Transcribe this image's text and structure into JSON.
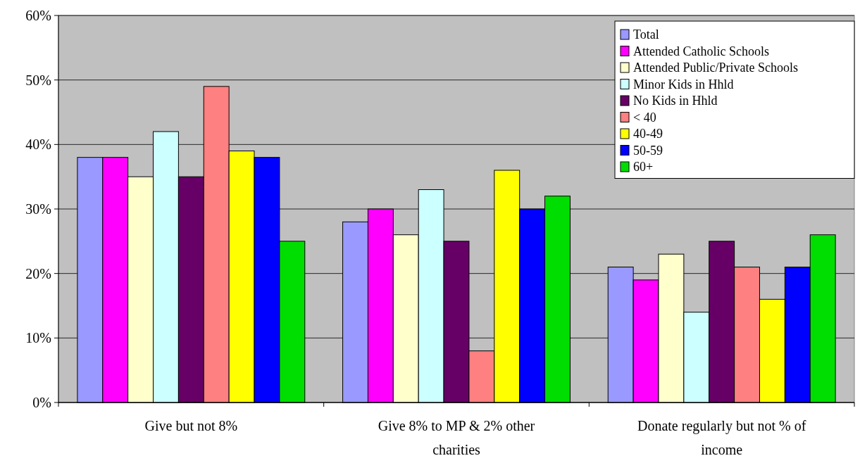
{
  "chart_data": {
    "type": "bar",
    "categories": [
      "Give but not 8%",
      "Give 8% to MP & 2% other charities",
      "Donate regularly but not % of income"
    ],
    "series": [
      {
        "name": "Total",
        "color": "#9999ff",
        "values": [
          38,
          28,
          21
        ]
      },
      {
        "name": "Attended Catholic Schools",
        "color": "#ff00ff",
        "values": [
          38,
          30,
          19
        ]
      },
      {
        "name": "Attended Public/Private Schools",
        "color": "#ffffcc",
        "values": [
          35,
          26,
          23
        ]
      },
      {
        "name": "Minor Kids in Hhld",
        "color": "#ccffff",
        "values": [
          42,
          33,
          14
        ]
      },
      {
        "name": "No Kids in Hhld",
        "color": "#660066",
        "values": [
          35,
          25,
          25
        ]
      },
      {
        "name": "< 40",
        "color": "#ff8080",
        "values": [
          49,
          8,
          21
        ]
      },
      {
        "name": "40-49",
        "color": "#ffff00",
        "values": [
          39,
          36,
          16
        ]
      },
      {
        "name": "50-59",
        "color": "#0000ff",
        "values": [
          38,
          30,
          21
        ]
      },
      {
        "name": "60+",
        "color": "#00dd00",
        "values": [
          25,
          32,
          26
        ]
      }
    ],
    "ylim": [
      0,
      60
    ],
    "yticks": [
      {
        "value": 0,
        "label": "0%"
      },
      {
        "value": 10,
        "label": "10%"
      },
      {
        "value": 20,
        "label": "20%"
      },
      {
        "value": 30,
        "label": "30%"
      },
      {
        "value": 40,
        "label": "40%"
      },
      {
        "value": 50,
        "label": "50%"
      },
      {
        "value": 60,
        "label": "60%"
      }
    ],
    "grid": "y",
    "legend": "top right"
  }
}
